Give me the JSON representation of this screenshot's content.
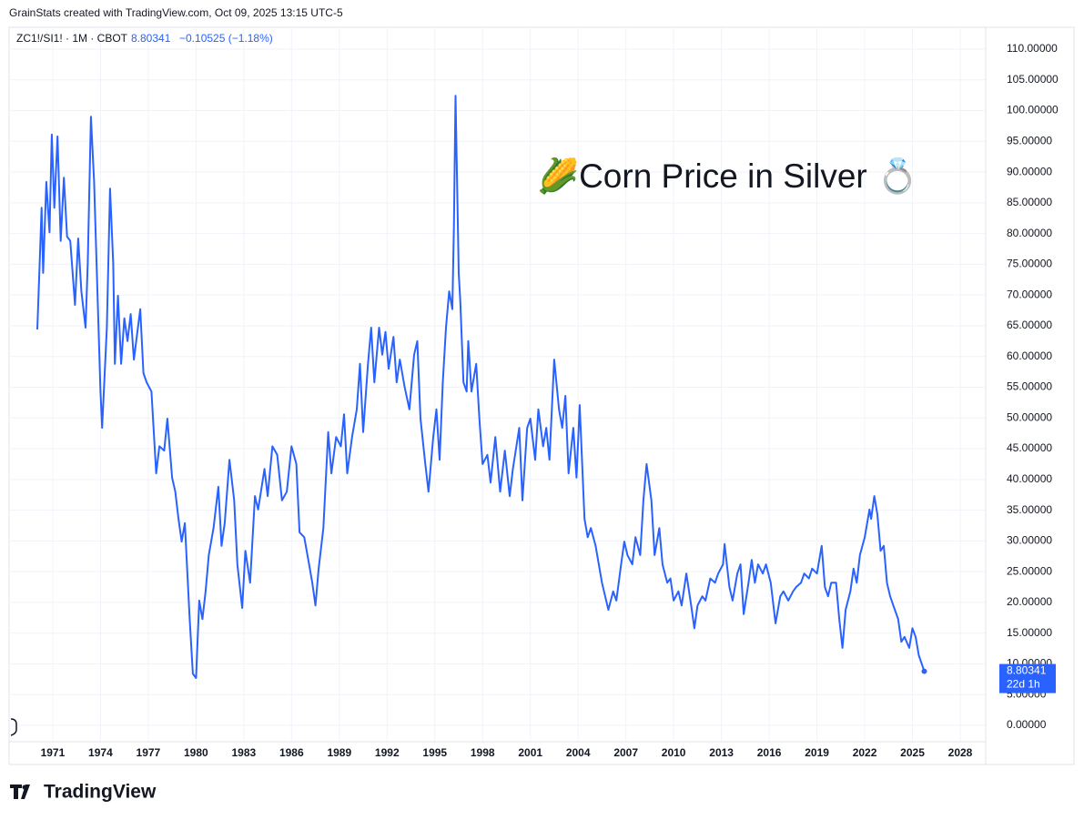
{
  "header": "GrainStats created with TradingView.com, Oct 09, 2025 13:15 UTC-5",
  "brand": "TradingView",
  "chart_data": {
    "type": "line",
    "symbol": "ZC1!/SI1! · 1M · CBOT",
    "last_price": "8.80341",
    "change": "−0.10525 (−1.18%)",
    "countdown": "22d 1h",
    "annotation": "🌽Corn Price in Silver 💍",
    "color": "#2962ff",
    "grid": true,
    "xlim": [
      1968.26,
      2029.6
    ],
    "ylim": [
      -2.66,
      113.55
    ],
    "xticks": [
      1971,
      1974,
      1977,
      1980,
      1983,
      1986,
      1989,
      1992,
      1995,
      1998,
      2001,
      2004,
      2007,
      2010,
      2013,
      2016,
      2019,
      2022,
      2025,
      2028
    ],
    "yticks": [
      {
        "value": 0,
        "label": "0.00000"
      },
      {
        "value": 5,
        "label": "5.00000"
      },
      {
        "value": 10,
        "label": "10.00000"
      },
      {
        "value": 15,
        "label": "15.00000"
      },
      {
        "value": 20,
        "label": "20.00000"
      },
      {
        "value": 25,
        "label": "25.00000"
      },
      {
        "value": 30,
        "label": "30.00000"
      },
      {
        "value": 35,
        "label": "35.00000"
      },
      {
        "value": 40,
        "label": "40.00000"
      },
      {
        "value": 45,
        "label": "45.00000"
      },
      {
        "value": 50,
        "label": "50.00000"
      },
      {
        "value": 55,
        "label": "55.00000"
      },
      {
        "value": 60,
        "label": "60.00000"
      },
      {
        "value": 65,
        "label": "65.00000"
      },
      {
        "value": 70,
        "label": "70.00000"
      },
      {
        "value": 75,
        "label": "75.00000"
      },
      {
        "value": 80,
        "label": "80.00000"
      },
      {
        "value": 85,
        "label": "85.00000"
      },
      {
        "value": 90,
        "label": "90.00000"
      },
      {
        "value": 95,
        "label": "95.00000"
      },
      {
        "value": 100,
        "label": "100.00000"
      },
      {
        "value": 105,
        "label": "105.00000"
      },
      {
        "value": 110,
        "label": "110.00000"
      }
    ],
    "x": [
      1970.03,
      1970.2,
      1970.3,
      1970.4,
      1970.6,
      1970.8,
      1970.94,
      1971.1,
      1971.3,
      1971.5,
      1971.7,
      1971.9,
      1972.1,
      1972.4,
      1972.6,
      1972.8,
      1973.06,
      1973.2,
      1973.4,
      1973.6,
      1973.7,
      1974.0,
      1974.1,
      1974.4,
      1974.6,
      1974.8,
      1974.9,
      1975.1,
      1975.3,
      1975.5,
      1975.7,
      1975.9,
      1976.1,
      1976.5,
      1976.7,
      1976.9,
      1977.2,
      1977.5,
      1977.7,
      1978.0,
      1978.2,
      1978.5,
      1978.7,
      1978.9,
      1979.1,
      1979.3,
      1979.6,
      1979.8,
      1980.0,
      1980.2,
      1980.4,
      1980.6,
      1980.8,
      1981.1,
      1981.4,
      1981.6,
      1981.8,
      1982.1,
      1982.4,
      1982.6,
      1982.9,
      1983.1,
      1983.4,
      1983.7,
      1983.9,
      1984.3,
      1984.5,
      1984.8,
      1985.1,
      1985.4,
      1985.7,
      1986.0,
      1986.3,
      1986.5,
      1986.8,
      1987.1,
      1987.3,
      1987.5,
      1987.7,
      1988.0,
      1988.3,
      1988.5,
      1988.8,
      1989.1,
      1989.3,
      1989.5,
      1989.8,
      1990.1,
      1990.3,
      1990.5,
      1990.8,
      1991.0,
      1991.2,
      1991.5,
      1991.7,
      1991.9,
      1992.1,
      1992.4,
      1992.6,
      1992.8,
      1993.1,
      1993.4,
      1993.7,
      1993.9,
      1994.1,
      1994.4,
      1994.6,
      1994.9,
      1995.1,
      1995.3,
      1995.5,
      1995.7,
      1995.9,
      1996.1,
      1996.2,
      1996.3,
      1996.5,
      1996.6,
      1996.8,
      1997.0,
      1997.1,
      1997.3,
      1997.6,
      1997.8,
      1998.0,
      1998.3,
      1998.5,
      1998.8,
      1999.1,
      1999.4,
      1999.7,
      1999.9,
      2000.3,
      2000.5,
      2000.8,
      2001.0,
      2001.3,
      2001.5,
      2001.8,
      2002.0,
      2002.2,
      2002.5,
      2002.8,
      2003.0,
      2003.2,
      2003.4,
      2003.7,
      2003.9,
      2004.1,
      2004.4,
      2004.6,
      2004.8,
      2005.1,
      2005.3,
      2005.5,
      2005.7,
      2005.9,
      2006.2,
      2006.4,
      2006.7,
      2006.9,
      2007.1,
      2007.4,
      2007.6,
      2007.9,
      2008.1,
      2008.3,
      2008.6,
      2008.8,
      2009.1,
      2009.3,
      2009.6,
      2009.8,
      2010.0,
      2010.3,
      2010.5,
      2010.8,
      2011.1,
      2011.3,
      2011.5,
      2011.8,
      2012.0,
      2012.3,
      2012.6,
      2012.8,
      2013.1,
      2013.2,
      2013.5,
      2013.7,
      2014.0,
      2014.2,
      2014.4,
      2014.7,
      2014.9,
      2015.1,
      2015.3,
      2015.6,
      2015.8,
      2016.1,
      2016.4,
      2016.7,
      2016.9,
      2017.2,
      2017.5,
      2017.7,
      2018.0,
      2018.2,
      2018.5,
      2018.7,
      2019.0,
      2019.3,
      2019.5,
      2019.7,
      2019.9,
      2020.2,
      2020.4,
      2020.6,
      2020.8,
      2021.1,
      2021.3,
      2021.5,
      2021.7,
      2022.0,
      2022.3,
      2022.4,
      2022.6,
      2022.8,
      2023.0,
      2023.2,
      2023.4,
      2023.6,
      2023.8,
      2024.1,
      2024.3,
      2024.5,
      2024.8,
      2025.0,
      2025.2,
      2025.4,
      2025.6,
      2025.74
    ],
    "values": [
      64.4,
      76.5,
      84.2,
      73.6,
      88.4,
      80.2,
      96.1,
      84.2,
      95.8,
      78.8,
      89.1,
      79.5,
      78.8,
      68.4,
      79.2,
      70.6,
      64.7,
      75.1,
      99.0,
      88.4,
      79.5,
      54.3,
      48.4,
      64.7,
      87.3,
      75.1,
      58.8,
      69.9,
      58.8,
      66.2,
      62.5,
      66.9,
      59.5,
      67.7,
      57.3,
      55.8,
      54.3,
      41.0,
      45.4,
      44.7,
      49.9,
      40.3,
      38.0,
      33.6,
      29.9,
      32.9,
      17.3,
      8.4,
      7.7,
      20.3,
      17.3,
      21.8,
      27.7,
      32.1,
      38.8,
      29.2,
      32.9,
      43.2,
      36.6,
      26.2,
      19.1,
      28.4,
      23.2,
      37.3,
      35.1,
      41.7,
      37.3,
      45.4,
      44.0,
      36.6,
      38.0,
      45.4,
      42.5,
      31.4,
      30.6,
      26.2,
      23.2,
      19.5,
      25.5,
      32.1,
      47.7,
      41.0,
      46.9,
      45.4,
      50.6,
      41.0,
      46.9,
      51.4,
      58.8,
      47.7,
      58.8,
      64.7,
      55.8,
      64.7,
      60.3,
      64.0,
      58.0,
      63.2,
      55.8,
      59.5,
      55.1,
      51.4,
      60.3,
      62.5,
      49.9,
      42.5,
      38.0,
      46.9,
      51.4,
      43.2,
      55.8,
      64.7,
      70.6,
      67.7,
      81.0,
      102.4,
      73.6,
      69.1,
      55.8,
      54.3,
      62.5,
      54.3,
      58.8,
      49.9,
      42.5,
      44.0,
      39.5,
      46.9,
      38.0,
      44.7,
      37.3,
      41.7,
      48.4,
      36.6,
      48.4,
      49.9,
      43.2,
      51.4,
      45.4,
      48.4,
      43.2,
      59.5,
      51.4,
      48.4,
      53.6,
      41.0,
      48.4,
      40.3,
      52.1,
      33.6,
      30.6,
      32.1,
      29.2,
      26.2,
      23.2,
      21.0,
      18.8,
      21.8,
      20.3,
      26.2,
      29.9,
      27.7,
      26.2,
      30.6,
      27.7,
      36.6,
      42.5,
      36.6,
      27.7,
      32.1,
      26.2,
      23.2,
      23.9,
      20.3,
      21.8,
      19.5,
      24.7,
      19.5,
      15.8,
      19.5,
      21.0,
      20.3,
      23.9,
      23.2,
      24.7,
      26.2,
      29.5,
      22.5,
      20.3,
      24.7,
      26.2,
      18.1,
      23.2,
      26.9,
      23.2,
      26.2,
      24.7,
      26.2,
      23.2,
      16.6,
      21.0,
      21.8,
      20.3,
      21.8,
      22.5,
      23.2,
      24.7,
      23.9,
      25.5,
      24.7,
      29.2,
      22.5,
      21.0,
      23.2,
      23.2,
      17.3,
      12.6,
      18.8,
      21.8,
      25.5,
      23.2,
      27.7,
      30.6,
      35.1,
      33.6,
      37.3,
      34.3,
      28.4,
      29.2,
      23.2,
      21.0,
      19.5,
      17.3,
      13.6,
      14.4,
      12.6,
      15.8,
      14.4,
      11.4,
      9.9,
      8.80341
    ]
  }
}
